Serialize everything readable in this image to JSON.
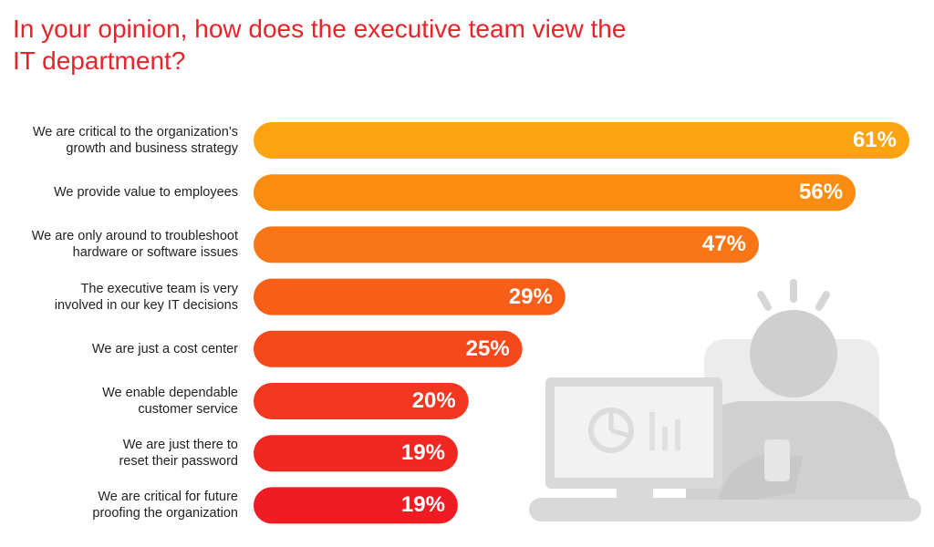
{
  "title": "In your opinion, how does the executive team view the IT department?",
  "chart_data": {
    "type": "bar",
    "orientation": "horizontal",
    "title": "In your opinion, how does the executive team view the IT department?",
    "categories": [
      "We are critical to the organization’s\ngrowth and business strategy",
      "We provide value to employees",
      "We are only around to troubleshoot\nhardware or software issues",
      "The executive team is very\ninvolved in our key IT decisions",
      "We are just a cost center",
      "We enable dependable\ncustomer service",
      "We are just there to\nreset their password",
      "We are critical for future\nproofing the organization"
    ],
    "values": [
      61,
      56,
      47,
      29,
      25,
      20,
      19,
      19
    ],
    "value_labels": [
      "61%",
      "56%",
      "47%",
      "29%",
      "25%",
      "20%",
      "19%",
      "19%"
    ],
    "unit": "%",
    "xlim": [
      0,
      61
    ],
    "grid": false,
    "bar_colors": [
      "#fca311",
      "#fb8c12",
      "#f97515",
      "#f75f18",
      "#f5491b",
      "#f3361f",
      "#f12722",
      "#ef1c24"
    ]
  },
  "colors": {
    "title": "#e8242a",
    "illustration": "#d9d9d9"
  },
  "illustration": {
    "icon": "person-at-computer-icon"
  }
}
